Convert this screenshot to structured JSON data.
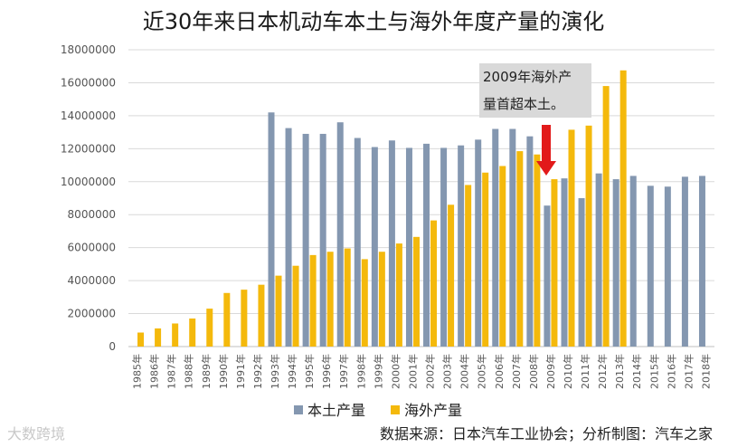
{
  "chart_data": {
    "type": "bar",
    "title": "近30年来日本机动车本土与海外年度产量的演化",
    "xlabel": "",
    "ylabel": "",
    "ylim": [
      0,
      18000000
    ],
    "yticks": [
      0,
      2000000,
      4000000,
      6000000,
      8000000,
      10000000,
      12000000,
      14000000,
      16000000,
      18000000
    ],
    "grid": true,
    "legend_position": "bottom-center",
    "categories": [
      "1985年",
      "1986年",
      "1987年",
      "1988年",
      "1989年",
      "1990年",
      "1991年",
      "1992年",
      "1993年",
      "1994年",
      "1995年",
      "1996年",
      "1997年",
      "1998年",
      "1999年",
      "2000年",
      "2001年",
      "2002年",
      "2003年",
      "2004年",
      "2005年",
      "2006年",
      "2007年",
      "2008年",
      "2009年",
      "2010年",
      "2011年",
      "2012年",
      "2013年",
      "2014年",
      "2015年",
      "2016年",
      "2017年",
      "2018年"
    ],
    "series": [
      {
        "name": "本土产量",
        "color": "#8497b0",
        "values": [
          null,
          null,
          null,
          null,
          null,
          null,
          null,
          null,
          14200000,
          13250000,
          12900000,
          12900000,
          13600000,
          12650000,
          12100000,
          12500000,
          12050000,
          12300000,
          12050000,
          12200000,
          12550000,
          13200000,
          13200000,
          12750000,
          8550000,
          10200000,
          9000000,
          10500000,
          10150000,
          10350000,
          9750000,
          9700000,
          10300000,
          10350000
        ]
      },
      {
        "name": "海外产量",
        "color": "#f4b90c",
        "values": [
          850000,
          1100000,
          1400000,
          1700000,
          2300000,
          3250000,
          3450000,
          3750000,
          4300000,
          4900000,
          5550000,
          5750000,
          5950000,
          5300000,
          5750000,
          6250000,
          6650000,
          7650000,
          8600000,
          9800000,
          10550000,
          10950000,
          11850000,
          11650000,
          10150000,
          13150000,
          13400000,
          15800000,
          16750000,
          null,
          null,
          null,
          null,
          null
        ]
      }
    ]
  },
  "annotation": {
    "line1": "2009年海外产",
    "line2": "量首超本土。"
  },
  "source_note": "数据来源：日本汽车工业协会；分析制图：汽车之家",
  "watermark": "大数跨境",
  "colors": {
    "arrow": "#e21a1a",
    "grid": "#d9d9d9",
    "annotation_bg": "#d9d9d9"
  }
}
